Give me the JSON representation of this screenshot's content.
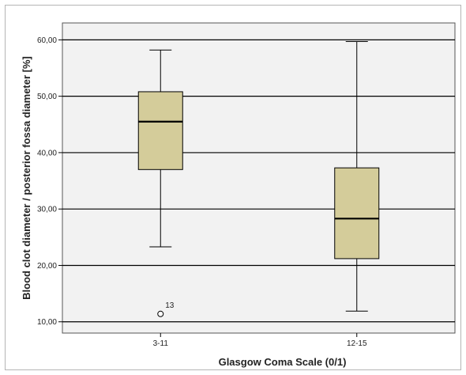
{
  "chart_data": {
    "type": "boxplot",
    "title": "",
    "xlabel": "Glasgow Coma Scale (0/1)",
    "ylabel": "Blood clot diameter / posterior fossa diameter [%]",
    "ylim": [
      8,
      63
    ],
    "yticks": [
      10,
      20,
      30,
      40,
      50,
      60
    ],
    "ytick_labels": [
      "10,00",
      "20,00",
      "30,00",
      "40,00",
      "50,00",
      "60,00"
    ],
    "grid": "horizontal",
    "categories": [
      "3-11",
      "12-15"
    ],
    "boxes": [
      {
        "category": "3-11",
        "min": 23.3,
        "q1": 37.0,
        "median": 45.5,
        "q3": 50.8,
        "max": 58.2,
        "outliers": [
          {
            "value": 11.4,
            "label": "13"
          }
        ]
      },
      {
        "category": "12-15",
        "min": 11.9,
        "q1": 21.2,
        "median": 28.3,
        "q3": 37.3,
        "max": 59.7,
        "outliers": []
      }
    ],
    "colors": {
      "box_fill": "#d4cc9a",
      "background": "#f2f2f2",
      "line": "#000000"
    }
  }
}
